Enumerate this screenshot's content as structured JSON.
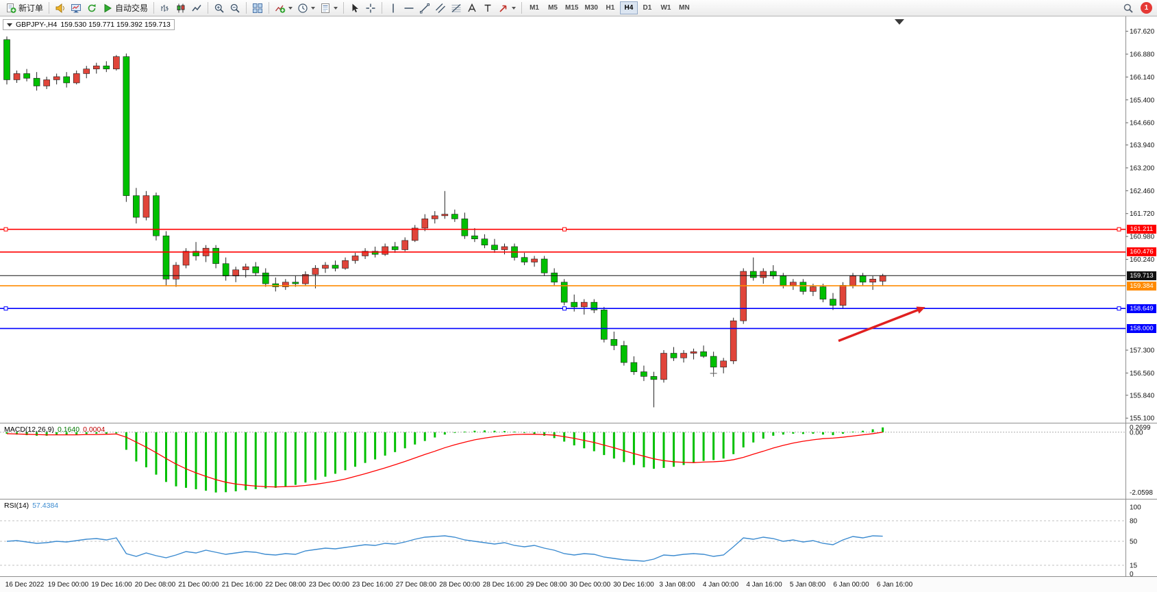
{
  "toolbar": {
    "groups": [
      {
        "buttons": [
          {
            "name": "new-order-button",
            "icon": "new-order-icon",
            "label": "新订单"
          }
        ]
      },
      {
        "buttons": [
          {
            "name": "charts-button",
            "icon": "horn-icon"
          },
          {
            "name": "market-watch-button",
            "icon": "monitor-icon"
          },
          {
            "name": "refresh-button",
            "icon": "refresh-icon"
          },
          {
            "name": "autotrading-button",
            "icon": "autotrade-icon",
            "label": "自动交易"
          }
        ]
      },
      {
        "buttons": [
          {
            "name": "bar-chart-button",
            "icon": "bars-icon"
          },
          {
            "name": "candlestick-chart-button",
            "icon": "candles-icon"
          },
          {
            "name": "line-chart-button",
            "icon": "line-icon"
          }
        ]
      },
      {
        "buttons": [
          {
            "name": "zoom-in-button",
            "icon": "zoom-in-icon"
          },
          {
            "name": "zoom-out-button",
            "icon": "zoom-out-icon"
          }
        ]
      },
      {
        "buttons": [
          {
            "name": "tile-windows-button",
            "icon": "tile-icon"
          }
        ]
      },
      {
        "buttons": [
          {
            "name": "indicators-button",
            "icon": "indicator-icon",
            "caret": true
          },
          {
            "name": "periods-button",
            "icon": "clock-icon",
            "caret": true
          },
          {
            "name": "templates-button",
            "icon": "template-icon",
            "caret": true
          }
        ]
      },
      {
        "buttons": [
          {
            "name": "cursor-button",
            "icon": "cursor-icon"
          },
          {
            "name": "crosshair-button",
            "icon": "crosshair-icon"
          }
        ]
      },
      {
        "buttons": [
          {
            "name": "vertical-line-button",
            "icon": "vline-icon"
          },
          {
            "name": "horizontal-line-button",
            "icon": "hline-icon"
          },
          {
            "name": "trendline-button",
            "icon": "trendline-icon"
          },
          {
            "name": "channel-button",
            "icon": "channel-icon"
          },
          {
            "name": "fibonacci-button",
            "icon": "fibo-icon"
          },
          {
            "name": "text-button",
            "icon": "text-icon"
          },
          {
            "name": "label-button",
            "icon": "label-icon"
          },
          {
            "name": "arrows-button",
            "icon": "arrows-icon",
            "caret": true
          }
        ]
      }
    ],
    "timeframes": [
      "M1",
      "M5",
      "M15",
      "M30",
      "H1",
      "H4",
      "D1",
      "W1",
      "MN"
    ],
    "active_timeframe": "H4",
    "notification_count": "1"
  },
  "chart_data": [
    {
      "type": "candlestick",
      "title": "GBPJPY-,H4",
      "ohlc_display": "159.530 159.771 159.392 159.713",
      "ylim": [
        154.95,
        168.1
      ],
      "yticks": [
        "167.620",
        "166.880",
        "166.140",
        "165.400",
        "164.660",
        "163.940",
        "163.200",
        "162.460",
        "161.720",
        "160.980",
        "160.240",
        "157.300",
        "156.560",
        "155.840",
        "155.100"
      ],
      "xticklabels": [
        "16 Dec 2022",
        "19 Dec 00:00",
        "19 Dec 16:00",
        "20 Dec 08:00",
        "21 Dec 00:00",
        "21 Dec 16:00",
        "22 Dec 08:00",
        "23 Dec 00:00",
        "23 Dec 16:00",
        "27 Dec 08:00",
        "28 Dec 00:00",
        "28 Dec 16:00",
        "29 Dec 08:00",
        "30 Dec 00:00",
        "30 Dec 16:00",
        "3 Jan 08:00",
        "4 Jan 00:00",
        "4 Jan 16:00",
        "5 Jan 08:00",
        "6 Jan 00:00",
        "6 Jan 16:00"
      ],
      "bull_color": "#e0453a",
      "bear_color": "#00c000",
      "candles": [
        [
          167.35,
          167.45,
          165.9,
          166.05
        ],
        [
          166.05,
          166.35,
          165.95,
          166.25
        ],
        [
          166.25,
          166.4,
          166.0,
          166.1
        ],
        [
          166.1,
          166.3,
          165.7,
          165.85
        ],
        [
          165.85,
          166.15,
          165.75,
          166.05
        ],
        [
          166.05,
          166.25,
          165.9,
          166.15
        ],
        [
          166.15,
          166.3,
          165.8,
          165.95
        ],
        [
          165.95,
          166.35,
          165.9,
          166.25
        ],
        [
          166.25,
          166.5,
          166.1,
          166.4
        ],
        [
          166.4,
          166.6,
          166.25,
          166.5
        ],
        [
          166.5,
          166.65,
          166.3,
          166.4
        ],
        [
          166.4,
          166.85,
          166.35,
          166.8
        ],
        [
          166.8,
          166.9,
          162.1,
          162.3
        ],
        [
          162.3,
          162.55,
          161.4,
          161.6
        ],
        [
          161.6,
          162.45,
          161.5,
          162.3
        ],
        [
          162.3,
          162.4,
          160.85,
          161.0
        ],
        [
          161.0,
          161.15,
          159.4,
          159.6
        ],
        [
          159.6,
          160.15,
          159.35,
          160.05
        ],
        [
          160.05,
          160.6,
          159.95,
          160.5
        ],
        [
          160.5,
          160.8,
          160.2,
          160.35
        ],
        [
          160.35,
          160.7,
          160.15,
          160.6
        ],
        [
          160.6,
          160.7,
          159.95,
          160.1
        ],
        [
          160.1,
          160.3,
          159.55,
          159.7
        ],
        [
          159.7,
          160.0,
          159.5,
          159.9
        ],
        [
          159.9,
          160.1,
          159.65,
          160.0
        ],
        [
          160.0,
          160.15,
          159.7,
          159.8
        ],
        [
          159.8,
          159.95,
          159.35,
          159.45
        ],
        [
          159.45,
          159.65,
          159.2,
          159.35
        ],
        [
          159.35,
          159.6,
          159.25,
          159.5
        ],
        [
          159.5,
          159.7,
          159.35,
          159.45
        ],
        [
          159.45,
          159.85,
          159.4,
          159.75
        ],
        [
          159.75,
          160.05,
          159.3,
          159.95
        ],
        [
          159.95,
          160.15,
          159.8,
          160.05
        ],
        [
          160.05,
          160.2,
          159.85,
          159.95
        ],
        [
          159.95,
          160.3,
          159.9,
          160.2
        ],
        [
          160.2,
          160.45,
          160.1,
          160.35
        ],
        [
          160.35,
          160.6,
          160.25,
          160.5
        ],
        [
          160.5,
          160.65,
          160.3,
          160.4
        ],
        [
          160.4,
          160.75,
          160.35,
          160.65
        ],
        [
          160.65,
          160.8,
          160.45,
          160.55
        ],
        [
          160.55,
          160.95,
          160.5,
          160.85
        ],
        [
          160.85,
          161.35,
          160.8,
          161.25
        ],
        [
          161.25,
          161.7,
          161.15,
          161.55
        ],
        [
          161.55,
          161.8,
          161.4,
          161.65
        ],
        [
          161.65,
          162.45,
          161.55,
          161.7
        ],
        [
          161.7,
          161.85,
          161.45,
          161.55
        ],
        [
          161.55,
          161.75,
          160.9,
          161.0
        ],
        [
          161.0,
          161.25,
          160.8,
          160.9
        ],
        [
          160.9,
          161.05,
          160.6,
          160.7
        ],
        [
          160.7,
          160.9,
          160.45,
          160.55
        ],
        [
          160.55,
          160.75,
          160.4,
          160.65
        ],
        [
          160.65,
          160.75,
          160.2,
          160.3
        ],
        [
          160.3,
          160.45,
          160.05,
          160.15
        ],
        [
          160.15,
          160.35,
          160.0,
          160.25
        ],
        [
          160.25,
          160.35,
          159.7,
          159.8
        ],
        [
          159.8,
          159.95,
          159.4,
          159.5
        ],
        [
          159.5,
          159.6,
          158.75,
          158.85
        ],
        [
          158.85,
          159.1,
          158.55,
          158.7
        ],
        [
          158.7,
          158.95,
          158.45,
          158.85
        ],
        [
          158.85,
          158.95,
          158.5,
          158.6
        ],
        [
          158.6,
          158.7,
          157.55,
          157.65
        ],
        [
          157.65,
          157.9,
          157.3,
          157.45
        ],
        [
          157.45,
          157.6,
          156.8,
          156.9
        ],
        [
          156.9,
          157.1,
          156.5,
          156.6
        ],
        [
          156.6,
          156.8,
          156.3,
          156.45
        ],
        [
          156.45,
          156.6,
          155.45,
          156.35
        ],
        [
          156.35,
          157.3,
          156.25,
          157.2
        ],
        [
          157.2,
          157.4,
          156.95,
          157.05
        ],
        [
          157.05,
          157.3,
          156.9,
          157.2
        ],
        [
          157.2,
          157.35,
          157.0,
          157.25
        ],
        [
          157.25,
          157.45,
          157.05,
          157.1
        ],
        [
          157.1,
          157.25,
          156.6,
          156.75
        ],
        [
          156.75,
          157.05,
          156.55,
          156.95
        ],
        [
          156.95,
          158.35,
          156.85,
          158.25
        ],
        [
          158.25,
          159.95,
          158.15,
          159.85
        ],
        [
          159.85,
          160.3,
          159.55,
          159.65
        ],
        [
          159.65,
          159.95,
          159.45,
          159.85
        ],
        [
          159.85,
          160.05,
          159.6,
          159.7
        ],
        [
          159.7,
          159.8,
          159.3,
          159.4
        ],
        [
          159.4,
          159.6,
          159.25,
          159.5
        ],
        [
          159.5,
          159.6,
          159.1,
          159.2
        ],
        [
          159.2,
          159.45,
          159.05,
          159.35
        ],
        [
          159.35,
          159.45,
          158.85,
          158.95
        ],
        [
          158.95,
          159.15,
          158.6,
          158.75
        ],
        [
          158.75,
          159.5,
          158.65,
          159.4
        ],
        [
          159.4,
          159.8,
          159.3,
          159.7
        ],
        [
          159.7,
          159.8,
          159.4,
          159.5
        ],
        [
          159.5,
          159.7,
          159.25,
          159.6
        ],
        [
          159.53,
          159.771,
          159.392,
          159.713
        ]
      ],
      "hlines": [
        {
          "price": 161.211,
          "color": "#ff0000",
          "label": "161.211",
          "selected": true
        },
        {
          "price": 160.476,
          "color": "#ff0000",
          "label": "160.476",
          "selected": false
        },
        {
          "price": 159.384,
          "color": "#ff8a00",
          "label": "159.384",
          "selected": false
        },
        {
          "price": 158.649,
          "color": "#0000ff",
          "label": "158.649",
          "selected": true
        },
        {
          "price": 158.0,
          "color": "#0000ff",
          "label": "158.000",
          "selected": false
        }
      ],
      "bid": {
        "price": 159.713,
        "label": "159.713"
      },
      "arrow": {
        "x1f": 0.745,
        "p1": 157.6,
        "x2f": 0.817,
        "p2": 158.62,
        "color": "#e02020"
      },
      "plus_marker": {
        "index": 71,
        "price": 156.55
      }
    },
    {
      "type": "bar",
      "name": "MACD(12,26,9)",
      "value_main": "0.1640",
      "value_signal": "0.0004",
      "ylim": [
        -2.3,
        0.3
      ],
      "yticks": [
        "0.2699",
        "0.00",
        "-2.0598"
      ],
      "hist_color": "#00c000",
      "signal_color": "#ff0000",
      "histogram": [
        -0.05,
        -0.08,
        -0.1,
        -0.12,
        -0.12,
        -0.1,
        -0.1,
        -0.08,
        -0.06,
        -0.05,
        -0.05,
        -0.04,
        -0.6,
        -1.0,
        -1.2,
        -1.45,
        -1.7,
        -1.85,
        -1.9,
        -1.95,
        -2.0,
        -2.06,
        -2.05,
        -2.02,
        -1.98,
        -1.95,
        -1.92,
        -1.9,
        -1.85,
        -1.8,
        -1.72,
        -1.63,
        -1.52,
        -1.42,
        -1.3,
        -1.18,
        -1.05,
        -0.93,
        -0.8,
        -0.68,
        -0.55,
        -0.42,
        -0.3,
        -0.18,
        -0.08,
        -0.02,
        0.02,
        0.05,
        0.06,
        0.05,
        0.04,
        0.02,
        -0.02,
        -0.06,
        -0.12,
        -0.2,
        -0.32,
        -0.45,
        -0.55,
        -0.65,
        -0.78,
        -0.9,
        -1.02,
        -1.12,
        -1.2,
        -1.25,
        -1.22,
        -1.18,
        -1.12,
        -1.05,
        -0.98,
        -0.95,
        -0.9,
        -0.75,
        -0.52,
        -0.35,
        -0.22,
        -0.12,
        -0.08,
        -0.05,
        -0.06,
        -0.05,
        -0.08,
        -0.1,
        -0.05,
        0.02,
        0.05,
        0.1,
        0.164
      ],
      "signal": [
        -0.05,
        -0.06,
        -0.07,
        -0.08,
        -0.09,
        -0.09,
        -0.09,
        -0.09,
        -0.08,
        -0.08,
        -0.07,
        -0.06,
        -0.17,
        -0.34,
        -0.51,
        -0.7,
        -0.9,
        -1.09,
        -1.25,
        -1.39,
        -1.51,
        -1.62,
        -1.71,
        -1.77,
        -1.81,
        -1.84,
        -1.86,
        -1.87,
        -1.86,
        -1.85,
        -1.82,
        -1.78,
        -1.73,
        -1.67,
        -1.6,
        -1.51,
        -1.42,
        -1.32,
        -1.22,
        -1.11,
        -1.0,
        -0.88,
        -0.76,
        -0.65,
        -0.53,
        -0.43,
        -0.34,
        -0.26,
        -0.2,
        -0.15,
        -0.11,
        -0.08,
        -0.07,
        -0.07,
        -0.08,
        -0.1,
        -0.15,
        -0.21,
        -0.28,
        -0.35,
        -0.44,
        -0.53,
        -0.63,
        -0.73,
        -0.82,
        -0.91,
        -0.97,
        -1.01,
        -1.03,
        -1.04,
        -1.02,
        -1.01,
        -0.99,
        -0.94,
        -0.86,
        -0.75,
        -0.65,
        -0.54,
        -0.45,
        -0.37,
        -0.31,
        -0.26,
        -0.22,
        -0.2,
        -0.17,
        -0.13,
        -0.09,
        -0.05,
        0.0004
      ]
    },
    {
      "type": "line",
      "name": "RSI(14)",
      "value": "57.4384",
      "ylim": [
        0,
        100
      ],
      "yticks": [
        "100",
        "80",
        "50",
        "15",
        "0"
      ],
      "levels": [
        80,
        50,
        15
      ],
      "line_color": "#3c8bd0",
      "values": [
        50,
        51,
        49,
        47,
        48,
        50,
        49,
        51,
        53,
        54,
        52,
        55,
        32,
        28,
        33,
        29,
        26,
        30,
        35,
        33,
        37,
        34,
        31,
        33,
        35,
        34,
        31,
        30,
        32,
        31,
        36,
        38,
        40,
        39,
        41,
        43,
        45,
        44,
        47,
        46,
        49,
        53,
        56,
        57,
        58,
        56,
        52,
        50,
        48,
        46,
        48,
        44,
        42,
        44,
        40,
        37,
        32,
        30,
        32,
        31,
        27,
        25,
        23,
        22,
        21,
        24,
        30,
        29,
        31,
        32,
        31,
        28,
        30,
        42,
        55,
        53,
        56,
        54,
        50,
        52,
        49,
        51,
        47,
        45,
        52,
        57,
        55,
        58,
        57.4
      ]
    }
  ]
}
